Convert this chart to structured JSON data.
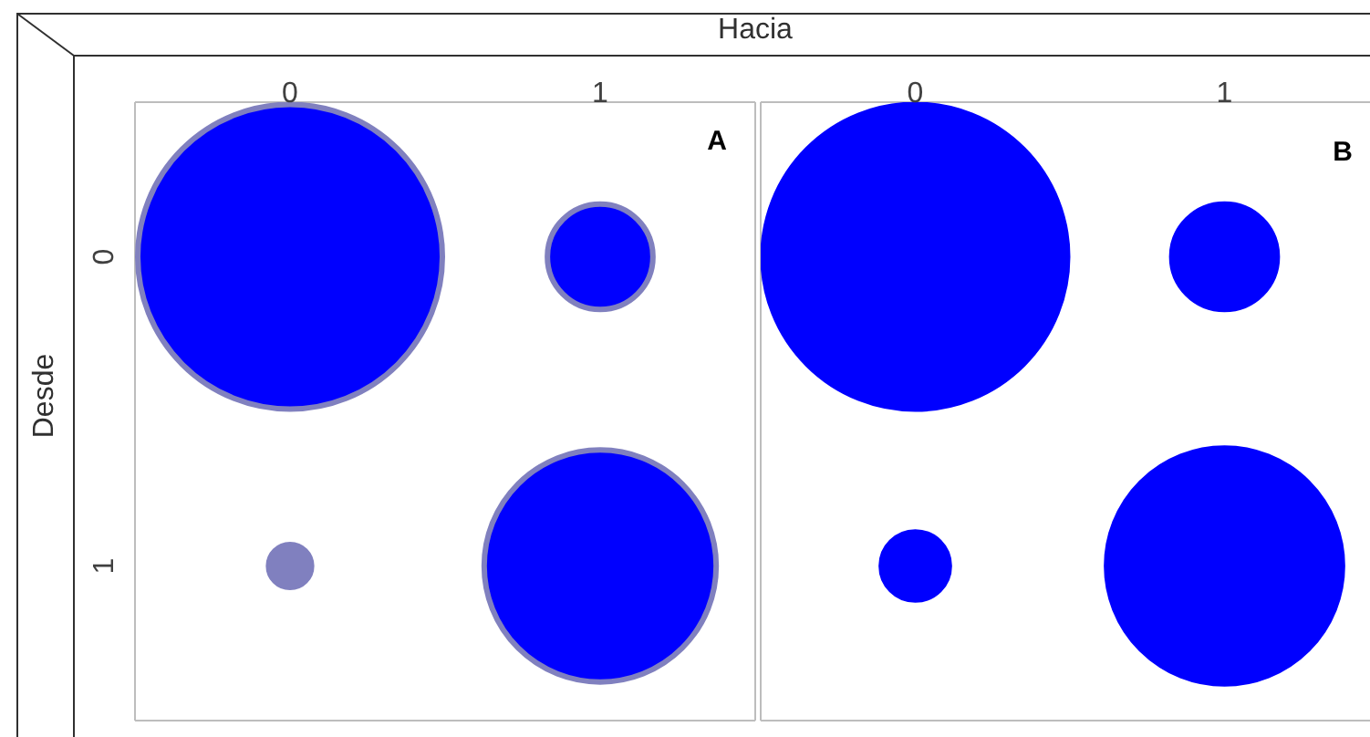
{
  "chart_data": [
    {
      "type": "bubble",
      "title": "A",
      "xlabel": "Hacia",
      "ylabel": "Desde",
      "categories": [
        "0",
        "1"
      ],
      "ylim": [
        1.5,
        -0.5
      ],
      "yticks": [
        0,
        1
      ],
      "series": [
        {
          "color": "#8080bf",
          "colors": [
            "#0000ff",
            "#0000ff"
          ],
          "values": [
            0,
            0
          ],
          "sizes": [
            1,
            0.12
          ]
        },
        {
          "color": "#8080bf",
          "colors": [
            "#8080bf",
            "#0000ff"
          ],
          "values": [
            1,
            1
          ],
          "sizes": [
            0.02,
            0.58
          ]
        }
      ]
    },
    {
      "type": "bubble",
      "title": "B",
      "categories": [
        "0",
        "1"
      ],
      "ylim": [
        1.5,
        -0.5
      ],
      "tick_labels": "x",
      "series": [
        {
          "color": "#0000ff",
          "values": [
            0,
            0
          ],
          "sizes": [
            1,
            0.12
          ]
        },
        {
          "color": "#0000ff",
          "values": [
            1,
            1
          ],
          "sizes": [
            0.05,
            0.6
          ]
        }
      ]
    }
  ]
}
